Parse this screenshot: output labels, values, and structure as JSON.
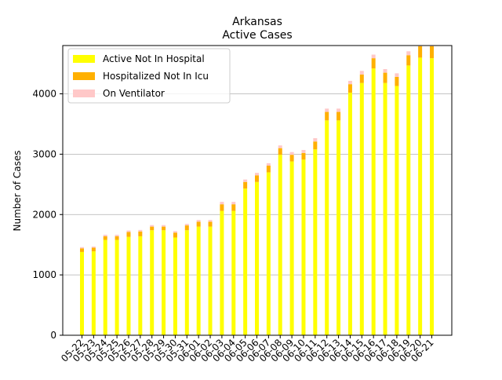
{
  "chart_data": {
    "type": "bar",
    "stacked": true,
    "title": "Arkansas",
    "subtitle": "Active Cases",
    "xlabel": "",
    "ylabel": "Number of Cases",
    "ylim": [
      0,
      4800
    ],
    "yticks": [
      0,
      1000,
      2000,
      3000,
      4000
    ],
    "grid": "horizontal",
    "legend_position": "top-left",
    "categories": [
      "05-22",
      "05-23",
      "05-24",
      "05-25",
      "05-26",
      "05-27",
      "05-28",
      "05-29",
      "05-30",
      "05-31",
      "06-01",
      "06-02",
      "06-03",
      "06-04",
      "06-05",
      "06-06",
      "06-07",
      "06-08",
      "06-09",
      "06-10",
      "06-11",
      "06-12",
      "06-13",
      "06-14",
      "06-15",
      "06-16",
      "06-17",
      "06-18",
      "06-19",
      "06-20",
      "06-21"
    ],
    "series": [
      {
        "name": "Active Not In Hospital",
        "color": "#ffff00",
        "values": [
          1380,
          1390,
          1580,
          1580,
          1630,
          1640,
          1740,
          1740,
          1620,
          1740,
          1800,
          1800,
          2060,
          2060,
          2430,
          2540,
          2700,
          2990,
          2880,
          2910,
          3080,
          3560,
          3560,
          4020,
          4180,
          4420,
          4180,
          4130,
          4470,
          4600,
          4590
        ]
      },
      {
        "name": "Hospitalized Not In Icu",
        "color": "#ffb000",
        "values": [
          60,
          60,
          60,
          60,
          80,
          80,
          60,
          60,
          80,
          80,
          80,
          80,
          110,
          110,
          110,
          110,
          110,
          110,
          110,
          110,
          130,
          140,
          140,
          140,
          140,
          170,
          170,
          150,
          170,
          190,
          200
        ]
      },
      {
        "name": "On Ventilator",
        "color": "#ffc8c8",
        "values": [
          20,
          20,
          25,
          25,
          25,
          25,
          25,
          25,
          25,
          25,
          30,
          30,
          40,
          40,
          40,
          40,
          40,
          45,
          45,
          50,
          55,
          55,
          55,
          55,
          60,
          60,
          60,
          60,
          65,
          70,
          70
        ]
      }
    ]
  }
}
